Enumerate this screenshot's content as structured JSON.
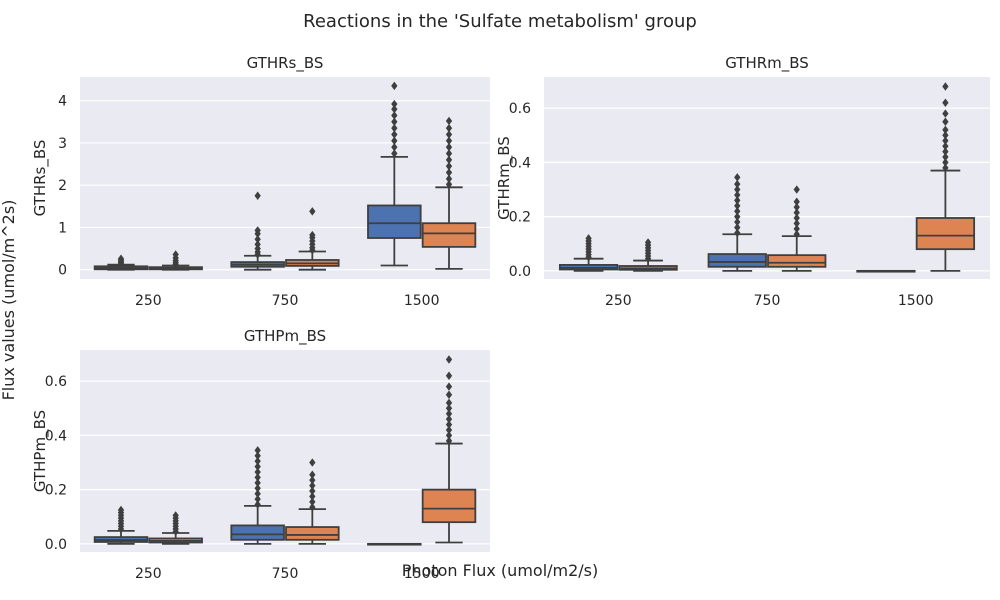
{
  "figure": {
    "suptitle": "Reactions in the 'Sulfate metabolism' group",
    "supylabel": "Flux values (umol/m^2s)",
    "supxlabel": "Photon Flux (umol/m2/s)"
  },
  "colors": {
    "background": "#ffffff",
    "axes_face": "#eaeaf2",
    "grid": "#ffffff",
    "text": "#262626",
    "line": "#3f3f3f",
    "series_a": "#4c72b0",
    "series_b": "#dd8452"
  },
  "chart_data": [
    {
      "type": "box",
      "title": "GTHRs_BS",
      "ylabel": "GTHRs_BS",
      "categories": [
        "250",
        "750",
        "1500"
      ],
      "ylim": [
        -0.22,
        4.56
      ],
      "yticks": [
        0,
        1,
        2,
        3,
        4
      ],
      "tick_labels": [
        "0",
        "1",
        "2",
        "3",
        "4"
      ],
      "grid": true,
      "boxes": [
        {
          "category": "250",
          "series": 0,
          "whislo": 0.0,
          "q1": 0.01,
          "med": 0.04,
          "q3": 0.08,
          "whishi": 0.12,
          "outliers": [
            0.14,
            0.17,
            0.2,
            0.23,
            0.26
          ]
        },
        {
          "category": "250",
          "series": 1,
          "whislo": 0.0,
          "q1": 0.01,
          "med": 0.03,
          "q3": 0.06,
          "whishi": 0.1,
          "outliers": [
            0.13,
            0.17,
            0.22,
            0.28,
            0.36
          ]
        },
        {
          "category": "750",
          "series": 0,
          "whislo": 0.0,
          "q1": 0.07,
          "med": 0.12,
          "q3": 0.18,
          "whishi": 0.33,
          "outliers": [
            0.36,
            0.42,
            0.5,
            0.6,
            0.72,
            0.85,
            0.93,
            1.75
          ]
        },
        {
          "category": "750",
          "series": 1,
          "whislo": 0.0,
          "q1": 0.09,
          "med": 0.15,
          "q3": 0.23,
          "whishi": 0.43,
          "outliers": [
            0.46,
            0.52,
            0.6,
            0.68,
            0.76,
            0.82,
            1.38
          ]
        },
        {
          "category": "1500",
          "series": 0,
          "whislo": 0.1,
          "q1": 0.75,
          "med": 1.1,
          "q3": 1.52,
          "whishi": 2.67,
          "outliers": [
            2.75,
            2.9,
            3.05,
            3.2,
            3.35,
            3.5,
            3.65,
            3.8,
            3.92,
            4.35
          ]
        },
        {
          "category": "1500",
          "series": 1,
          "whislo": 0.02,
          "q1": 0.54,
          "med": 0.86,
          "q3": 1.1,
          "whishi": 1.95,
          "outliers": [
            2.02,
            2.15,
            2.3,
            2.45,
            2.6,
            2.75,
            2.9,
            3.05,
            3.2,
            3.35,
            3.52
          ]
        }
      ]
    },
    {
      "type": "box",
      "title": "GTHRm_BS",
      "ylabel": "GTHRm_BS",
      "categories": [
        "250",
        "750",
        "1500"
      ],
      "ylim": [
        -0.03,
        0.715
      ],
      "yticks": [
        0,
        0.2,
        0.4,
        0.6
      ],
      "tick_labels": [
        "0.0",
        "0.2",
        "0.4",
        "0.6"
      ],
      "grid": true,
      "boxes": [
        {
          "category": "250",
          "series": 0,
          "whislo": 0.0,
          "q1": 0.005,
          "med": 0.011,
          "q3": 0.022,
          "whishi": 0.045,
          "outliers": [
            0.05,
            0.06,
            0.07,
            0.08,
            0.09,
            0.1,
            0.11,
            0.12
          ]
        },
        {
          "category": "250",
          "series": 1,
          "whislo": 0.0,
          "q1": 0.004,
          "med": 0.009,
          "q3": 0.018,
          "whishi": 0.038,
          "outliers": [
            0.045,
            0.055,
            0.065,
            0.075,
            0.085,
            0.095,
            0.105
          ]
        },
        {
          "category": "750",
          "series": 0,
          "whislo": 0.0,
          "q1": 0.015,
          "med": 0.033,
          "q3": 0.062,
          "whishi": 0.135,
          "outliers": [
            0.14,
            0.16,
            0.18,
            0.2,
            0.22,
            0.24,
            0.26,
            0.28,
            0.3,
            0.32,
            0.345
          ]
        },
        {
          "category": "750",
          "series": 1,
          "whislo": 0.0,
          "q1": 0.015,
          "med": 0.03,
          "q3": 0.058,
          "whishi": 0.128,
          "outliers": [
            0.135,
            0.155,
            0.175,
            0.195,
            0.215,
            0.235,
            0.255,
            0.3
          ]
        },
        {
          "category": "1500",
          "series": 0,
          "whislo": 0.0,
          "q1": 0.0,
          "med": 0.0,
          "q3": 0.0,
          "whishi": 0.0,
          "outliers": []
        },
        {
          "category": "1500",
          "series": 1,
          "whislo": 0.0,
          "q1": 0.08,
          "med": 0.13,
          "q3": 0.195,
          "whishi": 0.37,
          "outliers": [
            0.38,
            0.4,
            0.42,
            0.44,
            0.46,
            0.48,
            0.5,
            0.52,
            0.55,
            0.58,
            0.62,
            0.68
          ]
        }
      ]
    },
    {
      "type": "box",
      "title": "GTHPm_BS",
      "ylabel": "GTHPm_BS",
      "categories": [
        "250",
        "750",
        "1500"
      ],
      "ylim": [
        -0.03,
        0.715
      ],
      "yticks": [
        0,
        0.2,
        0.4,
        0.6
      ],
      "tick_labels": [
        "0.0",
        "0.2",
        "0.4",
        "0.6"
      ],
      "grid": true,
      "boxes": [
        {
          "category": "250",
          "series": 0,
          "whislo": 0.0,
          "q1": 0.007,
          "med": 0.014,
          "q3": 0.025,
          "whishi": 0.048,
          "outliers": [
            0.055,
            0.065,
            0.075,
            0.085,
            0.095,
            0.105,
            0.115,
            0.125
          ]
        },
        {
          "category": "250",
          "series": 1,
          "whislo": 0.0,
          "q1": 0.005,
          "med": 0.011,
          "q3": 0.02,
          "whishi": 0.04,
          "outliers": [
            0.045,
            0.055,
            0.065,
            0.075,
            0.085,
            0.095,
            0.105
          ]
        },
        {
          "category": "750",
          "series": 0,
          "whislo": 0.0,
          "q1": 0.015,
          "med": 0.035,
          "q3": 0.068,
          "whishi": 0.14,
          "outliers": [
            0.145,
            0.165,
            0.185,
            0.205,
            0.225,
            0.245,
            0.265,
            0.285,
            0.305,
            0.325,
            0.345
          ]
        },
        {
          "category": "750",
          "series": 1,
          "whislo": 0.0,
          "q1": 0.015,
          "med": 0.033,
          "q3": 0.062,
          "whishi": 0.128,
          "outliers": [
            0.135,
            0.155,
            0.175,
            0.195,
            0.215,
            0.235,
            0.255,
            0.3
          ]
        },
        {
          "category": "1500",
          "series": 0,
          "whislo": 0.0,
          "q1": 0.0,
          "med": 0.0,
          "q3": 0.0,
          "whishi": 0.0,
          "outliers": []
        },
        {
          "category": "1500",
          "series": 1,
          "whislo": 0.005,
          "q1": 0.08,
          "med": 0.13,
          "q3": 0.2,
          "whishi": 0.37,
          "outliers": [
            0.38,
            0.4,
            0.42,
            0.44,
            0.46,
            0.48,
            0.5,
            0.52,
            0.55,
            0.58,
            0.62,
            0.68
          ]
        }
      ]
    }
  ]
}
